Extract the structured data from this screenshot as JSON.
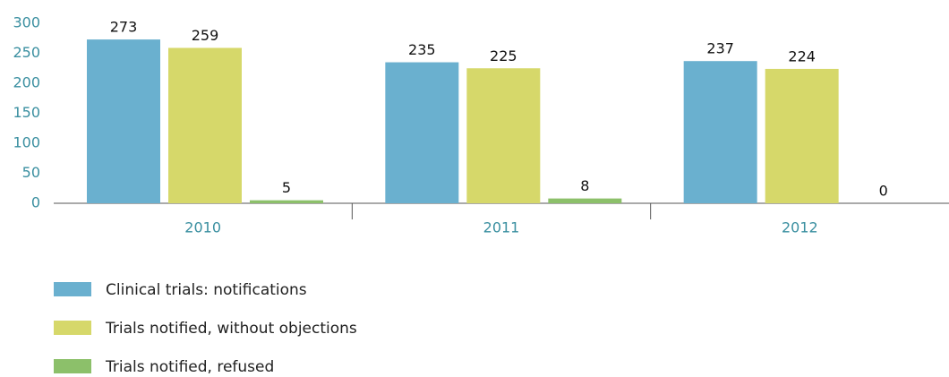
{
  "chart_data": {
    "type": "bar",
    "categories": [
      "2010",
      "2011",
      "2012"
    ],
    "series": [
      {
        "name": "Clinical trials: notifications",
        "color": "#6ab0cf",
        "values": [
          273,
          235,
          237
        ]
      },
      {
        "name": "Trials notified, without objections",
        "color": "#d6d86a",
        "values": [
          259,
          225,
          224
        ]
      },
      {
        "name": "Trials notified, refused",
        "color": "#8cc06a",
        "values": [
          5,
          8,
          0
        ]
      }
    ],
    "ylim": [
      0,
      300
    ],
    "yticks": [
      0,
      50,
      100,
      150,
      200,
      250,
      300
    ],
    "grid": false
  }
}
